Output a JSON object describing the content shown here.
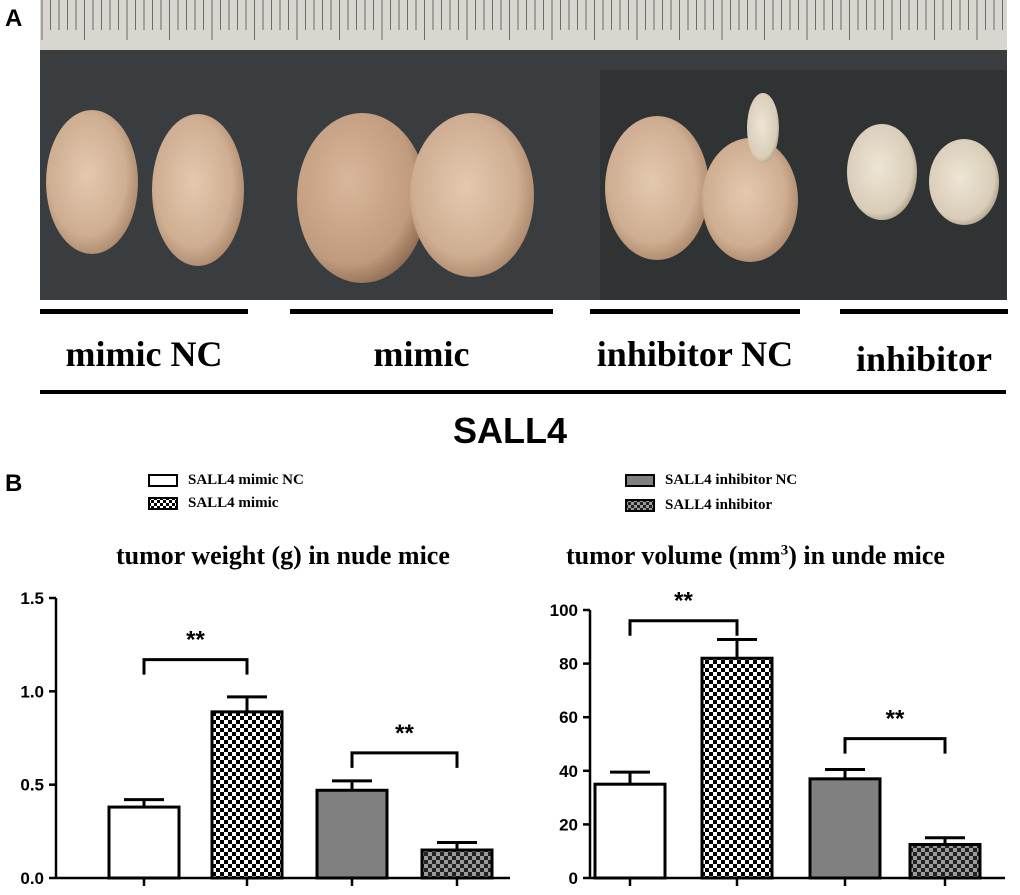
{
  "panel_a": {
    "letter": "A",
    "groups": [
      "mimic NC",
      "mimic",
      "inhibitor NC",
      "inhibitor"
    ],
    "main_label": "SALL4"
  },
  "panel_b": {
    "letter": "B",
    "legend": [
      {
        "label": "SALL4 mimic NC",
        "fill": "white"
      },
      {
        "label": "SALL4 mimic",
        "fill": "checker"
      },
      {
        "label": "SALL4 inhibitor NC",
        "fill": "gray"
      },
      {
        "label": "SALL4 inhibitor",
        "fill": "dark-checker"
      }
    ],
    "chart1_title": "tumor weight (g) in nude mice",
    "chart2_title_pre": "tumor volume (mm",
    "chart2_title_sup": "3",
    "chart2_title_post": ") in unde mice"
  },
  "colors": {
    "white": "#ffffff",
    "gray": "#808080",
    "black": "#000000",
    "photo_bg": "#3a3d3f"
  },
  "chart_data": [
    {
      "type": "bar",
      "title": "tumor weight (g) in nude mice",
      "categories": [
        "SALL4 mimic NC",
        "SALL4 mimic",
        "SALL4 inhibitor NC",
        "SALL4 inhibitor"
      ],
      "values": [
        0.38,
        0.89,
        0.47,
        0.15
      ],
      "errors": [
        0.04,
        0.08,
        0.05,
        0.04
      ],
      "ylim": [
        0,
        1.5
      ],
      "yticks": [
        "0.0",
        "0.5",
        "1.0",
        "1.5"
      ],
      "tick_values": [
        0,
        0.5,
        1.0,
        1.5
      ],
      "significance": [
        {
          "from": 0,
          "to": 1,
          "label": "**",
          "level": 1.17
        },
        {
          "from": 2,
          "to": 3,
          "label": "**",
          "level": 0.67
        }
      ]
    },
    {
      "type": "bar",
      "title": "tumor volume (mm3) in unde mice",
      "categories": [
        "SALL4 mimic NC",
        "SALL4 mimic",
        "SALL4 inhibitor NC",
        "SALL4 inhibitor"
      ],
      "values": [
        35,
        82,
        37,
        12.5
      ],
      "errors": [
        4.5,
        7,
        3.5,
        2.5
      ],
      "ylim": [
        0,
        100
      ],
      "yticks": [
        "0",
        "20",
        "40",
        "60",
        "80",
        "100"
      ],
      "tick_values": [
        0,
        20,
        40,
        60,
        80,
        100
      ],
      "significance": [
        {
          "from": 0,
          "to": 1,
          "label": "**",
          "level": 96
        },
        {
          "from": 2,
          "to": 3,
          "label": "**",
          "level": 52
        }
      ]
    }
  ]
}
